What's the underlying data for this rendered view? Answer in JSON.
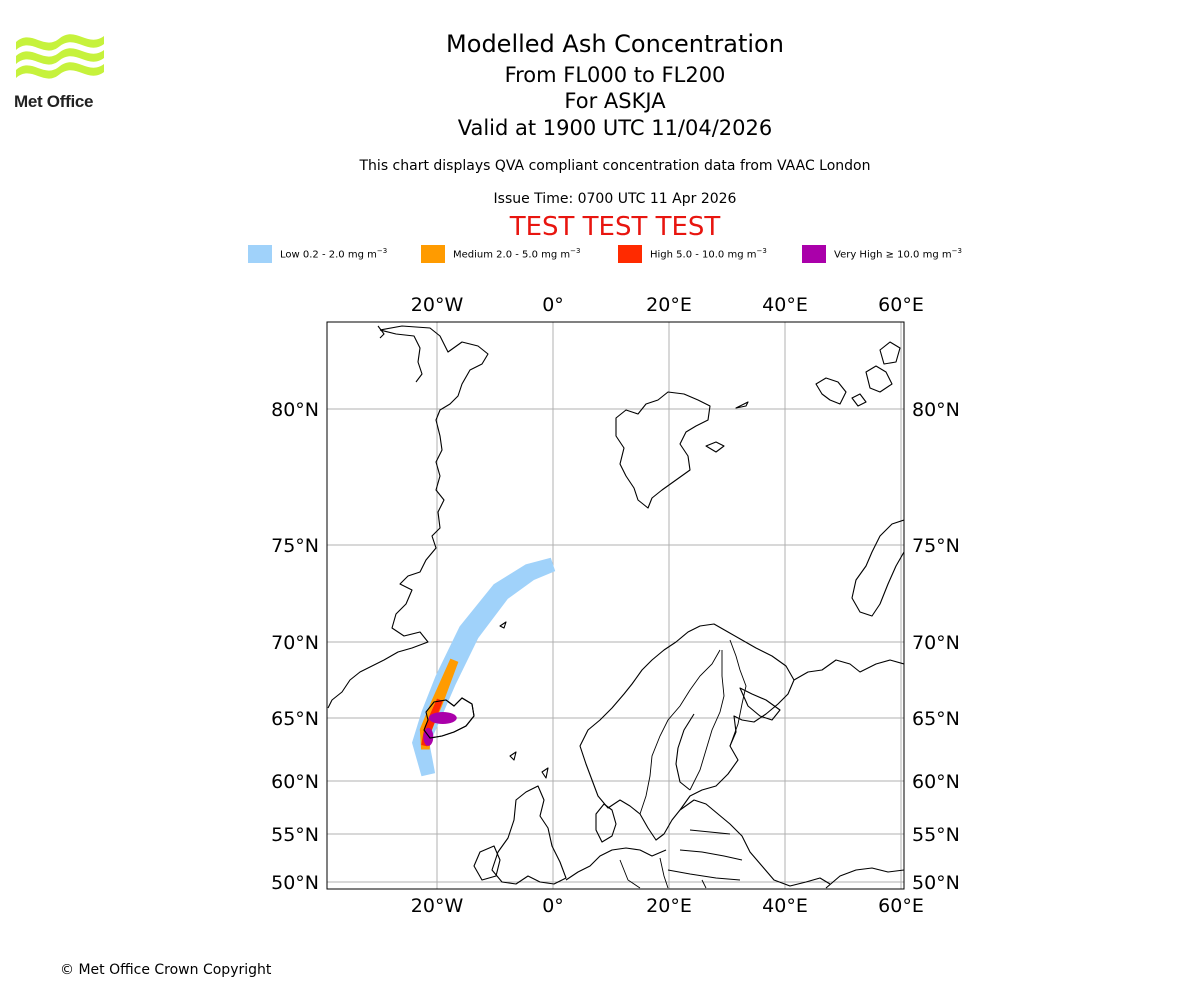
{
  "logo": {
    "name": "Met Office"
  },
  "header": {
    "title": "Modelled Ash Concentration",
    "flight_levels": "From FL000 to FL200",
    "volcano": "For ASKJA",
    "valid": "Valid at 1900 UTC 11/04/2026",
    "subtitle": "This chart displays QVA compliant concentration data from VAAC London",
    "issue_time": "Issue Time: 0700 UTC 11 Apr 2026",
    "test_banner": "TEST TEST TEST"
  },
  "legend": [
    {
      "label": "Low 0.2 - 2.0 mg m",
      "exp": "−3",
      "color": "#a0d2fa"
    },
    {
      "label": "Medium 2.0 - 5.0 mg m",
      "exp": "−3",
      "color": "#ff9b00"
    },
    {
      "label": "High 5.0 - 10.0 mg m",
      "exp": "−3",
      "color": "#ff2a00"
    },
    {
      "label": "Very High  ≥  10.0 mg m",
      "exp": "−3",
      "color": "#aa00aa"
    }
  ],
  "map": {
    "lon_range": [
      -40,
      60
    ],
    "lat_range": [
      50,
      83
    ],
    "lon_ticks": [
      {
        "value": -20,
        "label": "20°W"
      },
      {
        "value": 0,
        "label": "0°"
      },
      {
        "value": 20,
        "label": "20°E"
      },
      {
        "value": 40,
        "label": "40°E"
      },
      {
        "value": 60,
        "label": "60°E"
      }
    ],
    "lat_ticks": [
      {
        "value": 50,
        "label": "50°N"
      },
      {
        "value": 55,
        "label": "55°N"
      },
      {
        "value": 60,
        "label": "60°N"
      },
      {
        "value": 65,
        "label": "65°N"
      },
      {
        "value": 70,
        "label": "70°N"
      },
      {
        "value": 75,
        "label": "75°N"
      },
      {
        "value": 80,
        "label": "80°N"
      }
    ],
    "ash_plume": {
      "low_path": [
        [
          -21.5,
          60.5
        ],
        [
          -22.8,
          63.0
        ],
        [
          -21.0,
          65.2
        ],
        [
          -18.5,
          67.5
        ],
        [
          -14.5,
          70.5
        ],
        [
          -9.0,
          72.6
        ],
        [
          -4.0,
          73.6
        ],
        [
          0.0,
          74.0
        ]
      ],
      "medium_path": [
        [
          -22.0,
          62.5
        ],
        [
          -22.0,
          64.0
        ],
        [
          -20.0,
          66.0
        ],
        [
          -17.0,
          68.8
        ]
      ],
      "high_path": [
        [
          -22.2,
          62.8
        ],
        [
          -21.5,
          64.2
        ],
        [
          -19.5,
          66.2
        ]
      ],
      "very_high_center": [
        -19.0,
        65.0
      ]
    }
  },
  "footer": {
    "copyright": "© Met Office Crown Copyright"
  }
}
